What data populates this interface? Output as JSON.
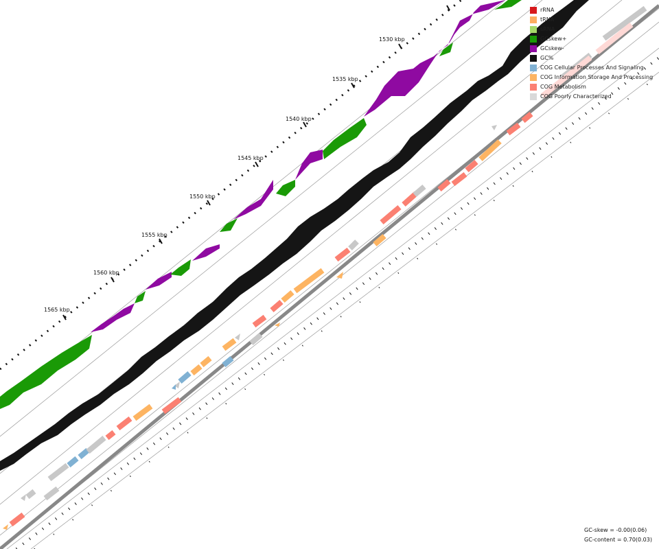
{
  "legend": [
    {
      "label": "rRNA",
      "color": "#d7191c"
    },
    {
      "label": "tRNA",
      "color": "#fdae61"
    },
    {
      "label": "sRNA",
      "color": "#a6d96a"
    },
    {
      "label": "GCskew+",
      "color": "#1a9a06"
    },
    {
      "label": "GCskew-",
      "color": "#8f0aa1"
    },
    {
      "label": "GC%",
      "color": "#111111"
    },
    {
      "label": "COG Cellular Processes And Signaling",
      "color": "#80b1d3"
    },
    {
      "label": "COG Information Storage And Processing",
      "color": "#fdb462"
    },
    {
      "label": "COG Metabolism",
      "color": "#fb8072"
    },
    {
      "label": "COG Poorly Characterized",
      "color": "#d9d9d9"
    }
  ],
  "ticks": [
    "1530 kbp",
    "1535 kbp",
    "1540 kbp",
    "1545 kbp",
    "1550 kbp",
    "1555 kbp",
    "1560 kbp",
    "1565 kbp"
  ],
  "stats": {
    "gc_skew": "GC-skew = -0.00(0.06)",
    "gc_content": "GC-content = 0.70(0.03)"
  }
}
